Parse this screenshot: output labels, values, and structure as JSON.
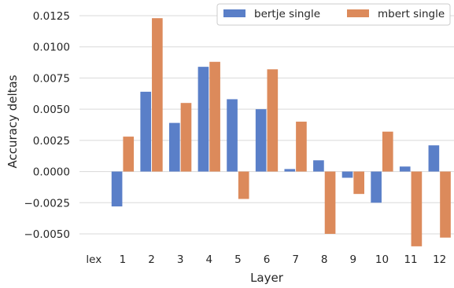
{
  "chart_data": {
    "type": "bar",
    "title": "",
    "xlabel": "Layer",
    "ylabel": "Accuracy deltas",
    "categories": [
      "lex",
      "1",
      "2",
      "3",
      "4",
      "5",
      "6",
      "7",
      "8",
      "9",
      "10",
      "11",
      "12"
    ],
    "series": [
      {
        "name": "bertje single",
        "color": "#5a7fc8",
        "values": [
          0.0,
          -0.0028,
          0.0064,
          0.0039,
          0.0084,
          0.0058,
          0.005,
          0.0002,
          0.0009,
          -0.0005,
          -0.0025,
          0.0004,
          0.0021
        ]
      },
      {
        "name": "mbert single",
        "color": "#dc8a5b",
        "values": [
          0.0,
          0.0028,
          0.0123,
          0.0055,
          0.0088,
          -0.0022,
          0.0082,
          0.004,
          -0.005,
          -0.0018,
          0.0032,
          -0.006,
          -0.0053
        ]
      }
    ],
    "ylim": [
      -0.0063,
      0.0131
    ],
    "yticks": [
      "0.0125",
      "0.0100",
      "0.0075",
      "0.0050",
      "0.0025",
      "0.0000",
      "−0.0025",
      "−0.0050"
    ],
    "ytick_values": [
      0.0125,
      0.01,
      0.0075,
      0.005,
      0.0025,
      0.0,
      -0.0025,
      -0.005
    ],
    "grid": "horizontal",
    "legend_position": "top-right"
  }
}
